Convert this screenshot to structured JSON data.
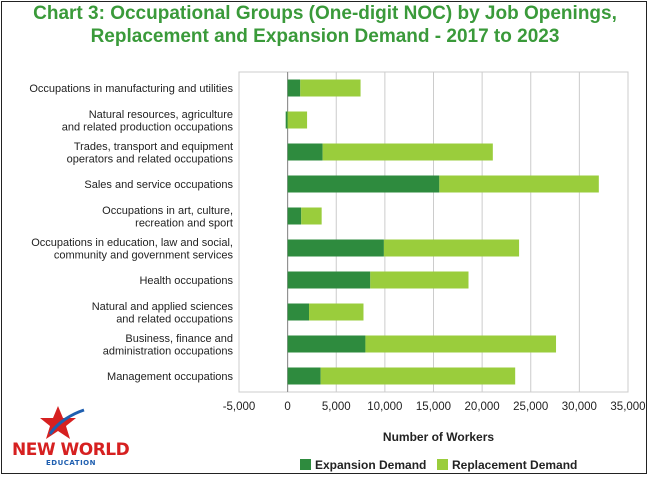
{
  "title_line1": "Chart 3: Occupational Groups (One-digit NOC) by Job Openings,",
  "title_line2": "Replacement and Expansion Demand - 2017 to 2023",
  "logo": {
    "word": "NEW WORLD",
    "sub": "EDUCATION"
  },
  "colors": {
    "title": "#3a9a3a",
    "expansion": "#2e8b3e",
    "replacement": "#9acd3c",
    "grid": "#cccccc"
  },
  "chart_data": {
    "type": "bar",
    "orientation": "horizontal",
    "stacked": true,
    "categories": [
      [
        "Occupations in manufacturing and utilities"
      ],
      [
        "Natural resources, agriculture",
        "and related production occupations"
      ],
      [
        "Trades, transport and equipment",
        "operators and related occupations"
      ],
      [
        "Sales and service occupations"
      ],
      [
        "Occupations in art, culture,",
        "recreation and sport"
      ],
      [
        "Occupations in education, law and social,",
        "community and government services"
      ],
      [
        "Health occupations"
      ],
      [
        "Natural and applied sciences",
        "and related occupations"
      ],
      [
        "Business, finance and",
        "administration occupations"
      ],
      [
        "Management occupations"
      ]
    ],
    "series": [
      {
        "name": "Expansion Demand",
        "values": [
          1300,
          -200,
          3600,
          15600,
          1400,
          9900,
          8500,
          2200,
          8000,
          3400
        ]
      },
      {
        "name": "Replacement Demand",
        "values": [
          6200,
          2000,
          17500,
          16400,
          2100,
          13900,
          10100,
          5600,
          19600,
          20000
        ]
      }
    ],
    "xlabel": "Number of Workers",
    "xlim": [
      -5000,
      35000
    ],
    "xticks": [
      -5000,
      0,
      5000,
      10000,
      15000,
      20000,
      25000,
      30000,
      35000
    ],
    "xtick_labels": [
      "-5,000",
      "0",
      "5,000",
      "10,000",
      "15,000",
      "20,000",
      "25,000",
      "30,000",
      "35,000"
    ],
    "grid": true,
    "legend_position": "bottom"
  }
}
